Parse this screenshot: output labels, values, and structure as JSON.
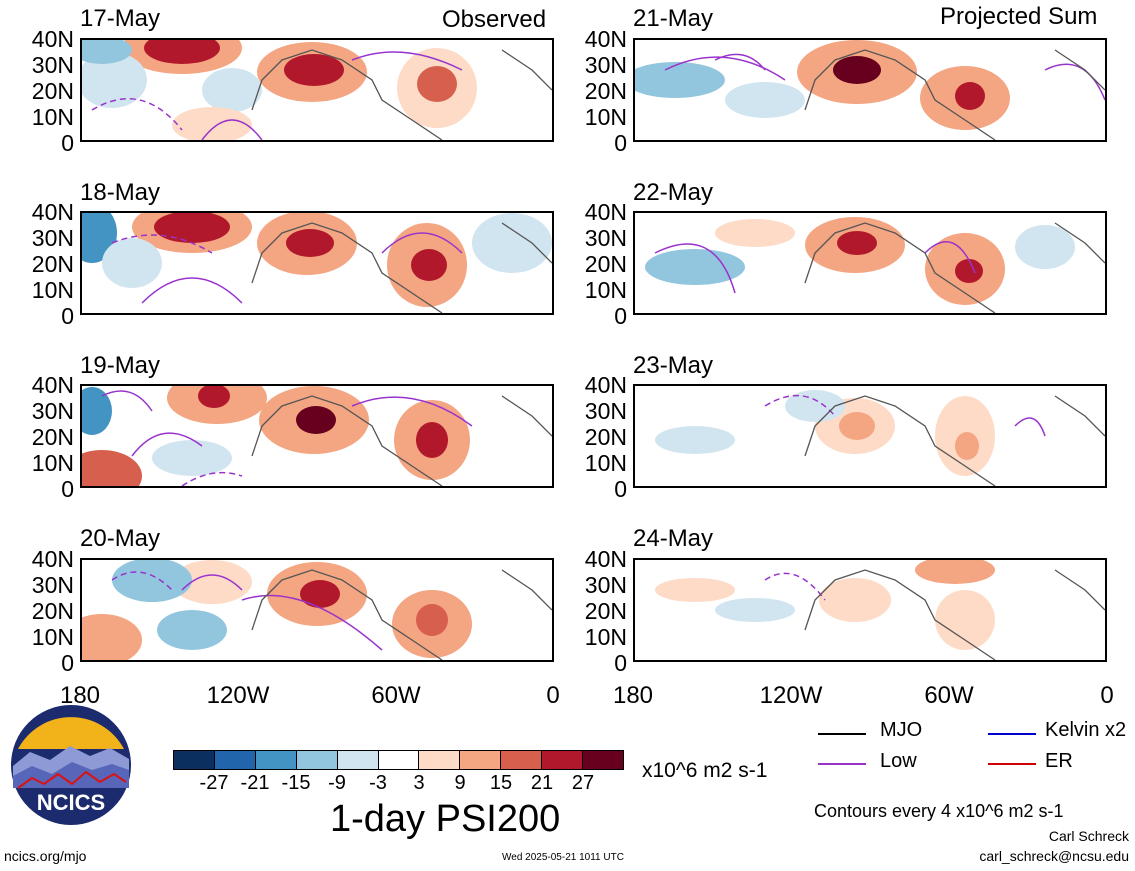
{
  "header": {
    "observed_title": "Observed",
    "projected_title": "Projected Sum"
  },
  "panels_left": [
    {
      "date": "17-May"
    },
    {
      "date": "18-May"
    },
    {
      "date": "19-May"
    },
    {
      "date": "20-May"
    }
  ],
  "panels_right": [
    {
      "date": "21-May"
    },
    {
      "date": "22-May"
    },
    {
      "date": "23-May"
    },
    {
      "date": "24-May"
    }
  ],
  "lat_labels": [
    "40N",
    "30N",
    "20N",
    "10N",
    "0"
  ],
  "lon_labels": [
    "180",
    "120W",
    "60W",
    "0"
  ],
  "colorbar": {
    "colors": [
      "#0b2f5e",
      "#2166ac",
      "#4393c3",
      "#92c5de",
      "#d1e5f0",
      "#ffffff",
      "#fddbc7",
      "#f4a582",
      "#d6604d",
      "#b2182b",
      "#67001f"
    ],
    "ticks": [
      "-27",
      "-21",
      "-15",
      "-9",
      "-3",
      "3",
      "9",
      "15",
      "21",
      "27"
    ],
    "units": "x10^6 m2 s-1"
  },
  "title": "1-day PSI200",
  "legend": [
    {
      "label": "MJO",
      "color": "#000000"
    },
    {
      "label": "Kelvin x2",
      "color": "#0000cc"
    },
    {
      "label": "Low",
      "color": "#9933cc"
    },
    {
      "label": "ER",
      "color": "#cc0000"
    }
  ],
  "contour_note": "Contours every 4 x10^6 m2 s-1",
  "author": "Carl Schreck",
  "email": "carl_schreck@ncsu.edu",
  "site": "ncics.org/mjo",
  "timestamp": "Wed 2025-05-21 1011 UTC",
  "logo_text": "NCICS"
}
